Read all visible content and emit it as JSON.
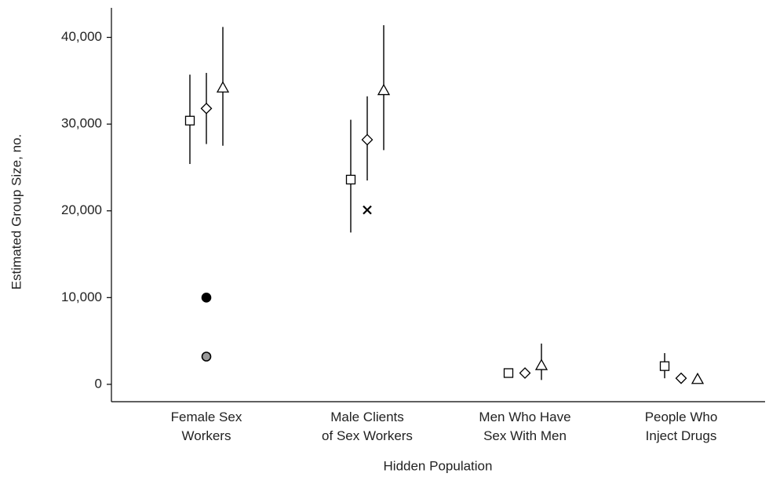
{
  "chart_data": {
    "type": "dot",
    "x_label": "Hidden Population",
    "y_label": "Estimated Group Size, no.",
    "categories": [
      "Female Sex\nWorkers",
      "Male Clients\nof Sex Workers",
      "Men Who Have\nSex With Men",
      "People Who\nInject Drugs"
    ],
    "ylim": [
      -2000,
      43400
    ],
    "yticks": [
      0,
      {
        "value": 10000,
        "label": "10,000"
      },
      {
        "value": 20000,
        "label": "20,000"
      },
      {
        "value": 30000,
        "label": "30,000"
      },
      {
        "value": 40000,
        "label": "40,000"
      }
    ],
    "series": [
      {
        "marker": "square",
        "color": "#000000",
        "fill": "#ffffff",
        "values": [
          30400,
          23600,
          1300,
          2100
        ],
        "lower": [
          25400,
          17500,
          null,
          700
        ],
        "upper": [
          35700,
          30500,
          null,
          3600
        ]
      },
      {
        "marker": "diamond",
        "color": "#000000",
        "fill": "#ffffff",
        "values": [
          31800,
          28200,
          1300,
          700
        ],
        "lower": [
          27700,
          23500,
          null,
          null
        ],
        "upper": [
          35900,
          33200,
          null,
          null
        ]
      },
      {
        "marker": "triangle",
        "color": "#000000",
        "fill": "#ffffff",
        "values": [
          34200,
          33900,
          2200,
          600
        ],
        "lower": [
          27500,
          27000,
          500,
          null
        ],
        "upper": [
          41200,
          41400,
          4700,
          null
        ]
      },
      {
        "marker": "circle",
        "color": "#000000",
        "fill": "#000000",
        "values": [
          10000,
          null,
          null,
          null
        ]
      },
      {
        "marker": "circle",
        "color": "#000000",
        "fill": "#999999",
        "values": [
          3200,
          null,
          null,
          null
        ]
      },
      {
        "marker": "x",
        "color": "#000000",
        "fill": "none",
        "values": [
          null,
          20100,
          null,
          null
        ]
      }
    ]
  }
}
